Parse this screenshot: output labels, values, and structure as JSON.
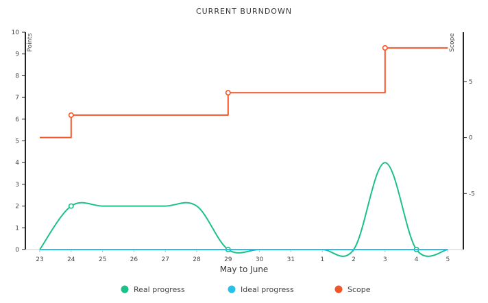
{
  "chart_data": {
    "type": "line",
    "title": "CURRENT BURNDOWN",
    "xlabel": "May to June",
    "ylabel_left": "Points",
    "ylabel_right": "Scope",
    "categories": [
      "23",
      "24",
      "25",
      "26",
      "27",
      "28",
      "29",
      "30",
      "31",
      "1",
      "2",
      "3",
      "4",
      "5"
    ],
    "y_left_ticks": [
      0,
      1,
      2,
      3,
      4,
      5,
      6,
      7,
      8,
      9,
      10
    ],
    "ylim_left": [
      0,
      10
    ],
    "y_right_ticks": [
      5,
      0,
      -5
    ],
    "ylim_right": [
      -10,
      9.4
    ],
    "grid": false,
    "legend_position": "bottom",
    "series": [
      {
        "name": "Real progress",
        "color": "#1dbf8a",
        "axis": "left",
        "style": "smooth",
        "values": [
          0,
          2,
          2,
          2,
          2,
          2,
          0,
          0,
          0,
          0,
          0,
          4,
          0,
          0
        ],
        "markers": [
          1,
          6,
          12
        ]
      },
      {
        "name": "Ideal progress",
        "color": "#29c0e8",
        "axis": "left",
        "style": "straight",
        "values": [
          0,
          0,
          0,
          0,
          0,
          0,
          0,
          0,
          0,
          0,
          0,
          0,
          0,
          0
        ]
      },
      {
        "name": "Scope",
        "color": "#f0562a",
        "axis": "right",
        "style": "step",
        "values": [
          0,
          2,
          2,
          2,
          2,
          2,
          4,
          4,
          4,
          4,
          4,
          8,
          8,
          8
        ],
        "markers": [
          1,
          6,
          11
        ]
      }
    ]
  }
}
